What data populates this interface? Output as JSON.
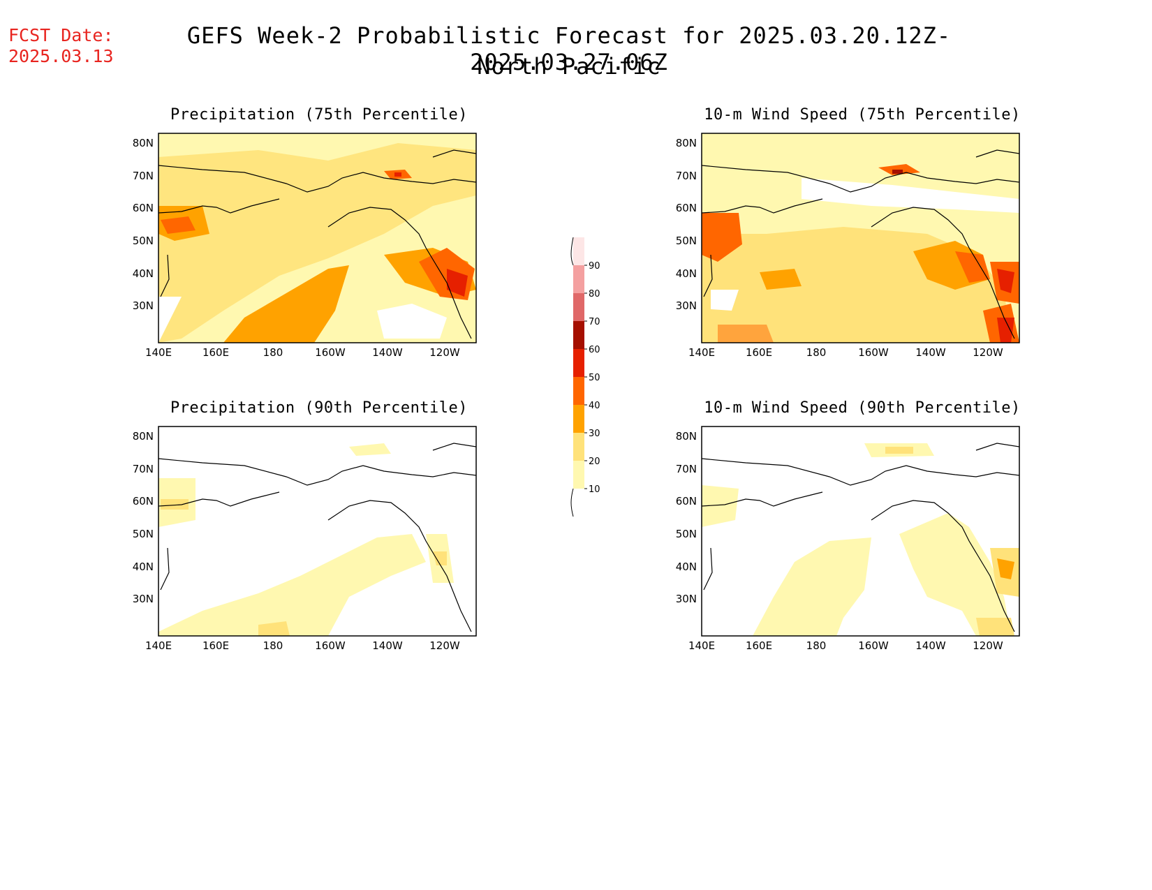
{
  "header": {
    "fcst_label": "FCST Date:",
    "fcst_date": "2025.03.13",
    "title_line1": "GEFS Week-2 Probabilistic Forecast for 2025.03.20.12Z-2025.03.27.06Z",
    "title_line2": "North Pacific"
  },
  "axes": {
    "lon_labels": [
      "140E",
      "160E",
      "180",
      "160W",
      "140W",
      "120W"
    ],
    "lat_labels": [
      "80N",
      "70N",
      "60N",
      "50N",
      "40N",
      "30N"
    ]
  },
  "panels": [
    {
      "id": "precip75",
      "title": "Precipitation (75th Percentile)"
    },
    {
      "id": "wind75",
      "title": "10-m Wind Speed (75th Percentile)"
    },
    {
      "id": "precip90",
      "title": "Precipitation (90th Percentile)"
    },
    {
      "id": "wind90",
      "title": "10-m Wind Speed (90th Percentile)"
    }
  ],
  "colorbar": {
    "levels": [
      "10",
      "20",
      "30",
      "40",
      "50",
      "60",
      "70",
      "80",
      "90"
    ],
    "colors": [
      "#fff8b0",
      "#ffe27a",
      "#ffa200",
      "#ff6600",
      "#e62000",
      "#a50f00",
      "#e06868",
      "#f4a0a0",
      "#fde6e6"
    ]
  }
}
